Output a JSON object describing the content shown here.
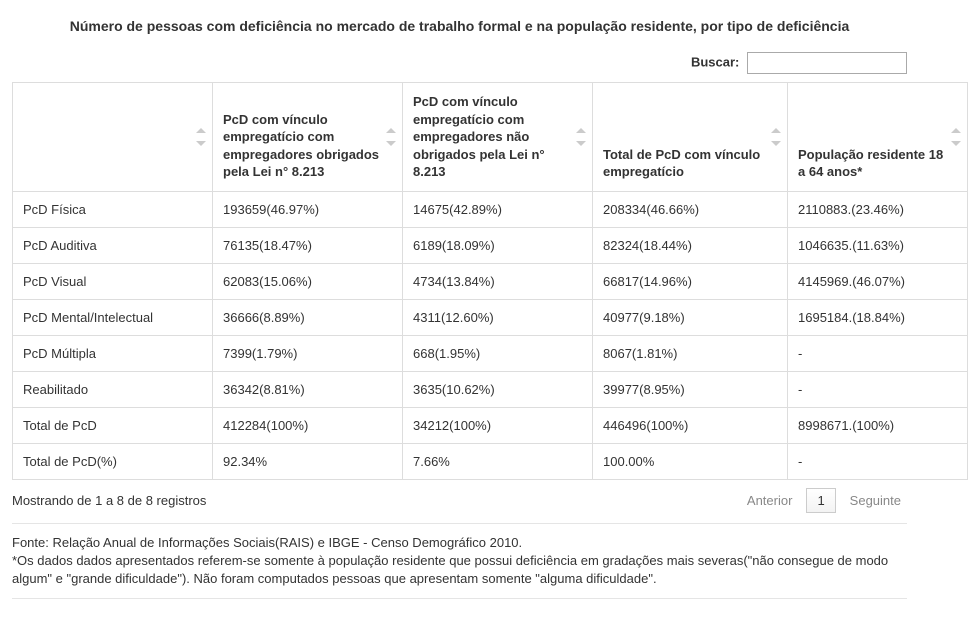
{
  "title": "Número de pessoas com deficiência no mercado de trabalho formal e na população residente, por tipo de deficiência",
  "search": {
    "label": "Buscar:",
    "value": ""
  },
  "table": {
    "columns": [
      {
        "label": ""
      },
      {
        "label": "PcD com vínculo empregatício com empregadores obrigados pela Lei n° 8.213"
      },
      {
        "label": "PcD com vínculo empregatício com empregadores não obrigados pela Lei n° 8.213"
      },
      {
        "label": "Total de PcD com vínculo empregatício"
      },
      {
        "label": "População residente 18 a 64 anos*"
      }
    ],
    "rows": [
      [
        "PcD Física",
        "193659(46.97%)",
        "14675(42.89%)",
        "208334(46.66%)",
        "2110883.(23.46%)"
      ],
      [
        "PcD Auditiva",
        "76135(18.47%)",
        "6189(18.09%)",
        "82324(18.44%)",
        "1046635.(11.63%)"
      ],
      [
        "PcD Visual",
        "62083(15.06%)",
        "4734(13.84%)",
        "66817(14.96%)",
        "4145969.(46.07%)"
      ],
      [
        "PcD Mental/Intelectual",
        "36666(8.89%)",
        "4311(12.60%)",
        "40977(9.18%)",
        "1695184.(18.84%)"
      ],
      [
        "PcD Múltipla",
        "7399(1.79%)",
        "668(1.95%)",
        "8067(1.81%)",
        "-"
      ],
      [
        "Reabilitado",
        "36342(8.81%)",
        "3635(10.62%)",
        "39977(8.95%)",
        "-"
      ],
      [
        "Total de PcD",
        "412284(100%)",
        "34212(100%)",
        "446496(100%)",
        "8998671.(100%)"
      ],
      [
        "Total de PcD(%)",
        "92.34%",
        "7.66%",
        "100.00%",
        "-"
      ]
    ]
  },
  "footer": {
    "info": "Mostrando de 1 a 8 de 8 registros",
    "prev": "Anterior",
    "page": "1",
    "next": "Seguinte"
  },
  "notes": {
    "line1": "Fonte: Relação Anual de Informações Sociais(RAIS) e IBGE - Censo Demográfico 2010.",
    "line2": "*Os dados dados apresentados referem-se somente à população residente que possui deficiência em gradações mais severas(\"não consegue de modo algum\" e \"grande dificuldade\"). Não foram computados pessoas que apresentam somente \"alguma dificuldade\"."
  }
}
